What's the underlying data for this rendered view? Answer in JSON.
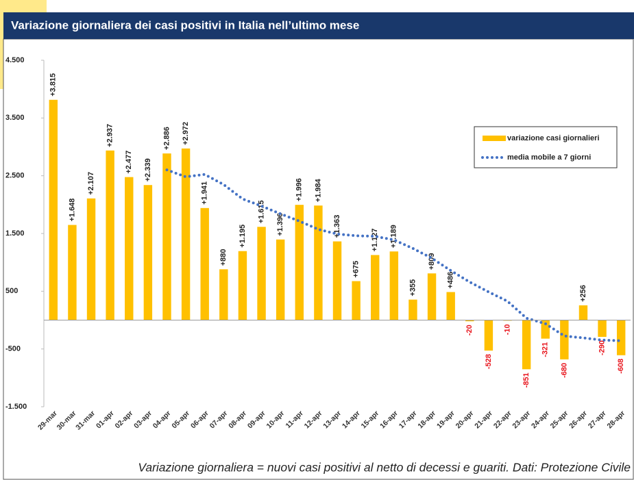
{
  "chart_data": {
    "type": "bar",
    "title": "Variazione giornaliera dei casi positivi in Italia nell’ultimo mese",
    "note": "Variazione giornaliera = nuovi casi positivi al netto di decessi e guariti. Dati: Protezione Civile",
    "categories": [
      "29-mar",
      "30-mar",
      "31-mar",
      "01-apr",
      "02-apr",
      "03-apr",
      "04-apr",
      "05-apr",
      "06-apr",
      "07-apr",
      "08-apr",
      "09-apr",
      "10-apr",
      "11-apr",
      "12-apr",
      "13-apr",
      "14-apr",
      "15-apr",
      "16-apr",
      "17-apr",
      "18-apr",
      "19-apr",
      "20-apr",
      "21-apr",
      "22-apr",
      "23-apr",
      "24-apr",
      "25-apr",
      "26-apr",
      "27-apr",
      "28-apr"
    ],
    "series": [
      {
        "name": "variazione casi giornalieri",
        "type": "bar",
        "color": "#ffc000",
        "values": [
          3815,
          1648,
          2107,
          2937,
          2477,
          2339,
          2886,
          2972,
          1941,
          880,
          1195,
          1615,
          1396,
          1996,
          1984,
          1363,
          675,
          1127,
          1189,
          355,
          809,
          486,
          -20,
          -528,
          -10,
          -851,
          -321,
          -680,
          256,
          -290,
          -608
        ],
        "value_labels": [
          "+3.815",
          "+1.648",
          "+2.107",
          "+2.937",
          "+2.477",
          "+2.339",
          "+2.886",
          "+2.972",
          "+1.941",
          "+880",
          "+1.195",
          "+1.615",
          "+1.396",
          "+1.996",
          "+1.984",
          "+1.363",
          "+675",
          "+1.127",
          "+1.189",
          "+355",
          "+809",
          "+486",
          "-20",
          "-528",
          "-10",
          "-851",
          "-321",
          "-680",
          "+256",
          "-290",
          "-608"
        ]
      },
      {
        "name": "media mobile a 7 giorni",
        "type": "line",
        "color": "#4472c4",
        "values": [
          null,
          null,
          null,
          null,
          null,
          null,
          2601,
          2481,
          2523,
          2347,
          2099,
          1975,
          1841,
          1714,
          1572,
          1490,
          1461,
          1451,
          1390,
          1241,
          1072,
          858,
          660,
          488,
          326,
          34,
          -62,
          -275,
          -308,
          -346,
          -358
        ]
      }
    ],
    "ylim": [
      -1500,
      4500
    ],
    "yticks": [
      {
        "value": -1500,
        "label": "-1.500"
      },
      -500,
      500,
      {
        "value": 1500,
        "label": "1.500"
      },
      {
        "value": 2500,
        "label": "2.500"
      },
      {
        "value": 3500,
        "label": "3.500"
      },
      {
        "value": 4500,
        "label": "4.500"
      }
    ],
    "negative_label_color": "#e8141c",
    "positive_label_color": "#222222",
    "grid": false,
    "legend": "upper right"
  }
}
